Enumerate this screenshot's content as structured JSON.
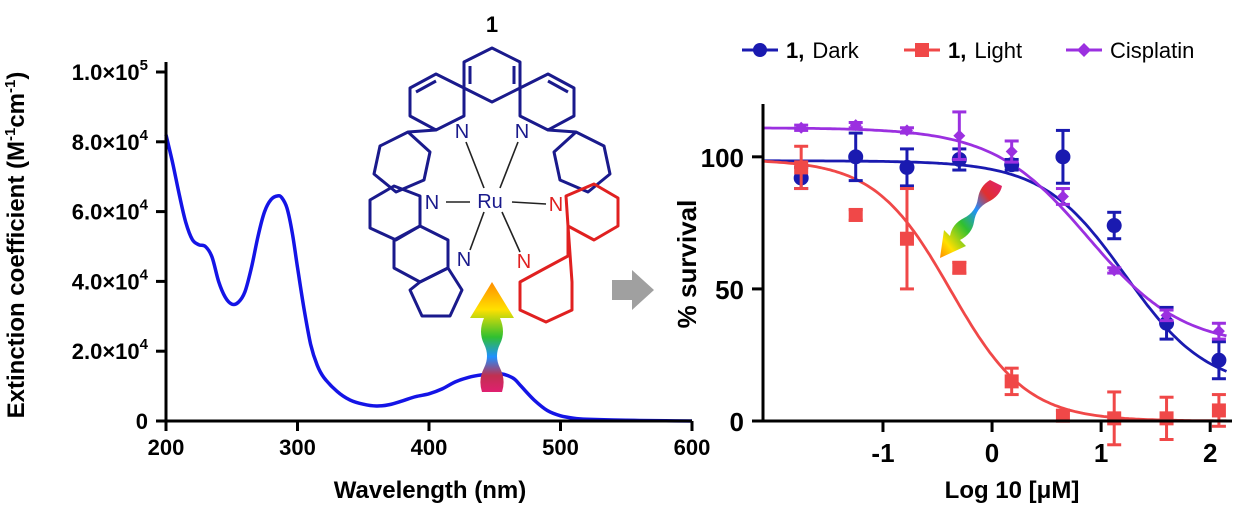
{
  "chart_data": [
    {
      "type": "line",
      "title": "",
      "xlabel": "Wavelength (nm)",
      "ylabel": "Extinction coefficient  (M-1cm-1)",
      "ylabel_parts": {
        "main": "Extinction coefficient  (M",
        "sup1": "-1",
        "mid": "cm",
        "sup2": "-1",
        "end": ")"
      },
      "xlim": [
        200,
        600
      ],
      "ylim": [
        0,
        100000
      ],
      "xticks": [
        200,
        300,
        400,
        500,
        600
      ],
      "xtick_labels": [
        "200",
        "300",
        "400",
        "500",
        "600"
      ],
      "yticks": [
        0,
        20000,
        40000,
        60000,
        80000,
        100000
      ],
      "ytick_labels": [
        {
          "base": "0",
          "sup": ""
        },
        {
          "base": "2.0×10",
          "sup": "4"
        },
        {
          "base": "4.0×10",
          "sup": "4"
        },
        {
          "base": "6.0×10",
          "sup": "4"
        },
        {
          "base": "8.0×10",
          "sup": "4"
        },
        {
          "base": "1.0×10",
          "sup": "5"
        }
      ],
      "color": "#1414e6",
      "x": [
        200,
        205,
        210,
        215,
        220,
        225,
        230,
        235,
        240,
        245,
        250,
        255,
        260,
        265,
        270,
        275,
        280,
        285,
        288,
        292,
        296,
        300,
        305,
        310,
        315,
        320,
        330,
        340,
        350,
        360,
        370,
        380,
        390,
        400,
        410,
        420,
        430,
        440,
        450,
        455,
        460,
        465,
        470,
        480,
        490,
        500,
        510,
        520,
        540,
        560,
        580,
        600
      ],
      "y": [
        82000,
        74000,
        65000,
        57000,
        52000,
        50500,
        50000,
        47000,
        40000,
        35500,
        33500,
        34000,
        37000,
        44000,
        53000,
        60000,
        63500,
        64500,
        64000,
        61000,
        54000,
        44000,
        32000,
        22000,
        16000,
        12500,
        8500,
        6000,
        4800,
        4300,
        4700,
        5800,
        7000,
        7800,
        9200,
        11200,
        12500,
        13200,
        13500,
        13500,
        13000,
        12000,
        10000,
        6000,
        3000,
        1500,
        800,
        500,
        300,
        150,
        50,
        0
      ]
    },
    {
      "type": "scatter",
      "title": "",
      "xlabel": "Log 10 [μM]",
      "ylabel": "% survival",
      "xlim": [
        -2.1,
        2.2
      ],
      "ylim": [
        0,
        120
      ],
      "xticks": [
        -1,
        0,
        1,
        2
      ],
      "xtick_labels": [
        "-1",
        "0",
        "1",
        "2"
      ],
      "yticks": [
        0,
        50,
        100
      ],
      "ytick_labels": [
        "0",
        "50",
        "100"
      ],
      "legend_position": "top",
      "series": [
        {
          "name_bold": "1,",
          "name_rest": "Dark",
          "color": "#1a1ab0",
          "marker": "circle",
          "x": [
            -1.75,
            -1.25,
            -0.78,
            -0.3,
            0.18,
            0.65,
            1.12,
            1.6,
            2.08
          ],
          "y": [
            92,
            100,
            96,
            99,
            97,
            100,
            74,
            37,
            23
          ],
          "err": [
            4,
            9,
            7,
            4,
            2,
            10,
            5,
            6,
            7
          ],
          "fit": {
            "top": 98.5,
            "bottom": 12,
            "logEC50": 1.22,
            "hill": 1.15
          }
        },
        {
          "name_bold": "1,",
          "name_rest": "Light",
          "color": "#f04848",
          "marker": "square",
          "x": [
            -1.75,
            -1.25,
            -0.78,
            -0.3,
            0.18,
            0.65,
            1.12,
            1.6,
            2.08
          ],
          "y": [
            96,
            78,
            69,
            58,
            15,
            2,
            1,
            1,
            4
          ],
          "err": [
            8,
            2,
            19,
            2,
            5,
            2,
            10,
            8,
            6
          ],
          "fit": {
            "top": 99,
            "bottom": 0,
            "logEC50": -0.38,
            "hill": 1.25
          }
        },
        {
          "name": "Cisplatin",
          "color": "#9b30e0",
          "marker": "diamond",
          "x": [
            -1.75,
            -1.25,
            -0.78,
            -0.3,
            0.18,
            0.65,
            1.12,
            1.6,
            2.08
          ],
          "y": [
            111,
            112,
            110,
            108,
            102,
            85,
            57,
            40,
            34
          ],
          "err": [
            1,
            1,
            1,
            9,
            4,
            3,
            1,
            2,
            3
          ],
          "fit": {
            "top": 111,
            "bottom": 28,
            "logEC50": 0.88,
            "hill": 1.0
          }
        }
      ]
    }
  ],
  "structure": {
    "label": "1",
    "atoms": {
      "n": "N",
      "ru": "Ru"
    }
  },
  "colors": {
    "rainbow": [
      "#e02020",
      "#ff8c00",
      "#ffe000",
      "#30c030",
      "#2090ff",
      "#8020e0",
      "#e02070"
    ],
    "gray_arrow": "#a0a0a0"
  }
}
